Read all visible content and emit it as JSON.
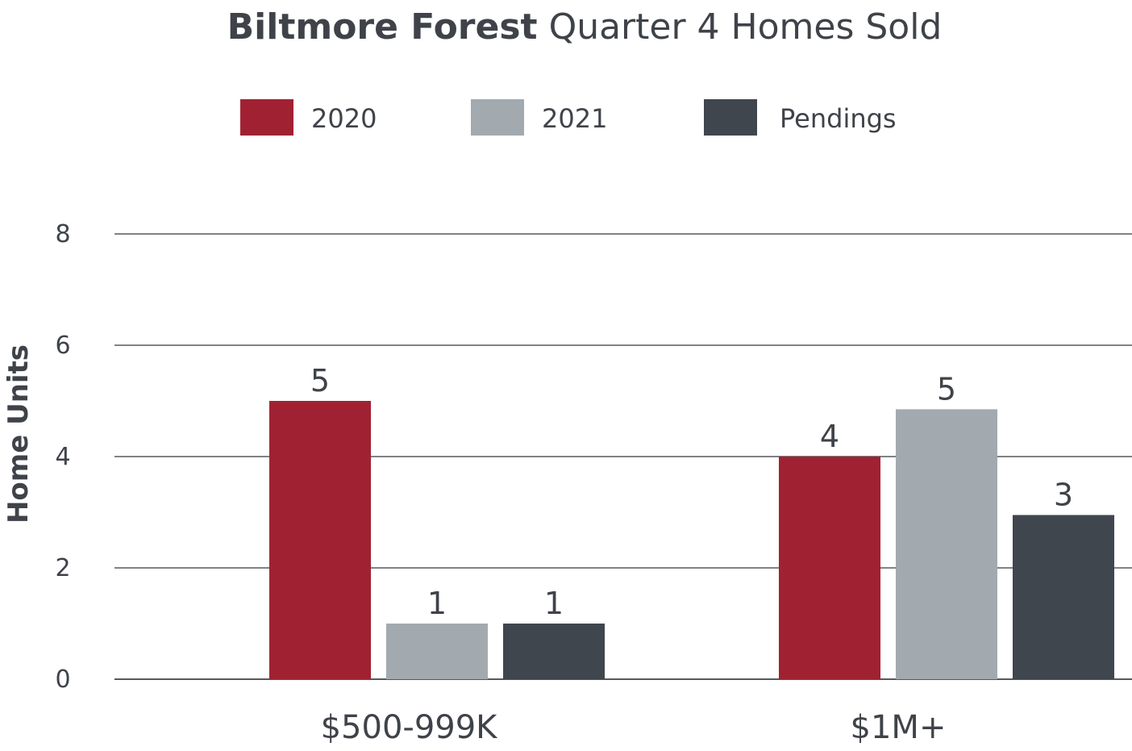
{
  "chart_data": {
    "type": "bar",
    "title_bold": "Biltmore Forest",
    "title_rest": "Quarter 4 Homes Sold",
    "ylabel": "Home Units",
    "xlabel": "",
    "ylim": [
      0,
      8
    ],
    "yticks": [
      0,
      2,
      4,
      6,
      8
    ],
    "grid": true,
    "legend_position": "top",
    "categories": [
      "$500-999K",
      "$1M+"
    ],
    "series": [
      {
        "name": "2020",
        "color": "#a02232",
        "values": [
          5,
          4
        ],
        "labels": [
          "5",
          "4"
        ]
      },
      {
        "name": "2021",
        "color": "#a2aaaf",
        "values": [
          1,
          4.85
        ],
        "labels": [
          "1",
          "5"
        ]
      },
      {
        "name": "Pendings",
        "color": "#40464d",
        "values": [
          1,
          2.95
        ],
        "labels": [
          "1",
          "3"
        ]
      }
    ]
  }
}
